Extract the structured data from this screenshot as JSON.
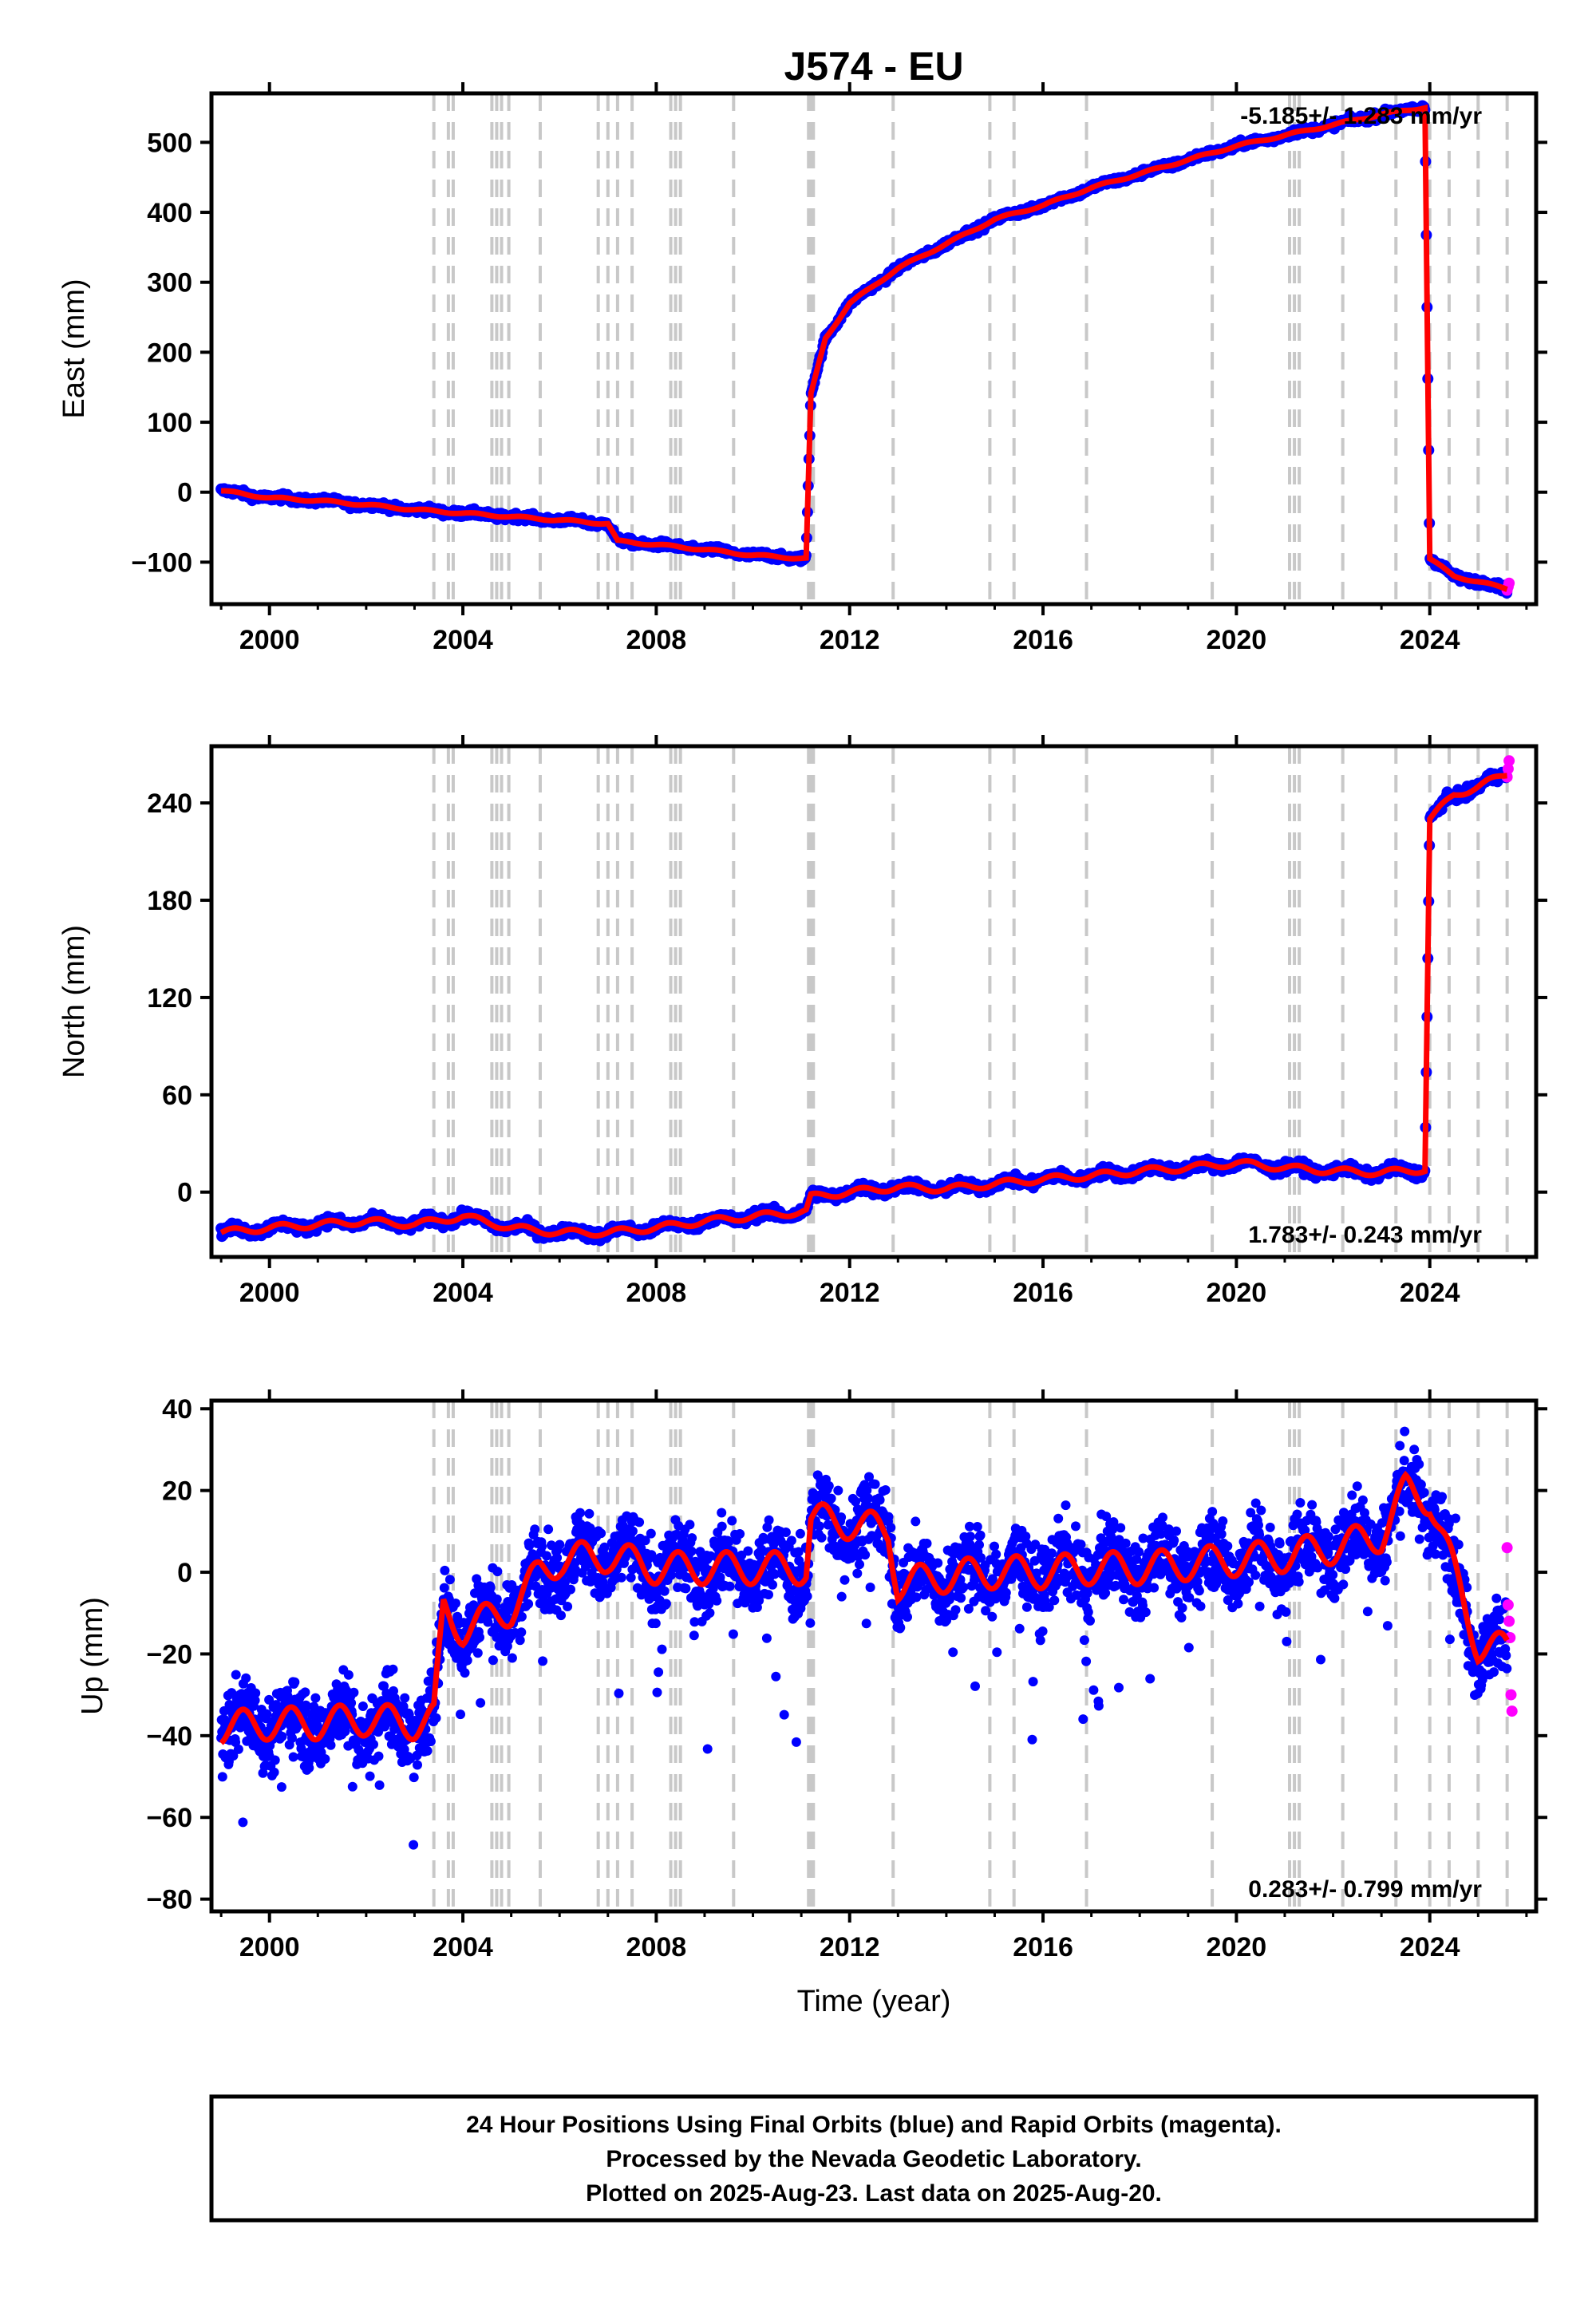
{
  "chart_data": [
    {
      "type": "scatter",
      "panel": "east",
      "title": "J574 - EU",
      "ylabel": "East (mm)",
      "xlabel": "",
      "xlim": [
        1998.8,
        2026.2
      ],
      "ylim": [
        -160,
        570
      ],
      "xticks": [
        "2000",
        "2004",
        "2008",
        "2012",
        "2016",
        "2020",
        "2024"
      ],
      "yticks": [
        "−100",
        "0",
        "100",
        "200",
        "300",
        "400",
        "500"
      ],
      "rate_label": "-5.185+/- 1.283 mm/yr",
      "rate_position": "top-right",
      "grid": false,
      "series": [
        {
          "color": "#0000ff",
          "x": [
            1999.0,
            2000.0,
            2001.0,
            2002.0,
            2003.0,
            2004.0,
            2005.0,
            2006.0,
            2007.0,
            2007.2,
            2008.0,
            2009.0,
            2010.0,
            2011.1,
            2011.2,
            2011.5,
            2012.0,
            2013.0,
            2014.0,
            2015.0,
            2016.0,
            2017.0,
            2018.0,
            2019.0,
            2020.0,
            2021.0,
            2022.0,
            2023.0,
            2023.9,
            2024.0,
            2024.5,
            2025.0,
            2025.6
          ],
          "y": [
            2,
            -8,
            -12,
            -18,
            -25,
            -30,
            -35,
            -40,
            -45,
            -70,
            -75,
            -82,
            -90,
            -95,
            140,
            220,
            270,
            320,
            355,
            390,
            410,
            435,
            455,
            475,
            495,
            510,
            525,
            540,
            550,
            -95,
            -120,
            -128,
            -138
          ]
        }
      ],
      "model_color": "#ff0000",
      "rapid_color": "#ff00ff"
    },
    {
      "type": "scatter",
      "panel": "north",
      "title": "",
      "ylabel": "North (mm)",
      "xlabel": "",
      "xlim": [
        1998.8,
        2026.2
      ],
      "ylim": [
        -40,
        275
      ],
      "xticks": [
        "2000",
        "2004",
        "2008",
        "2012",
        "2016",
        "2020",
        "2024"
      ],
      "yticks": [
        "0",
        "60",
        "120",
        "180",
        "240"
      ],
      "rate_label": "1.783+/- 0.243 mm/yr",
      "rate_position": "bottom-right",
      "grid": false,
      "series": [
        {
          "color": "#0000ff",
          "x": [
            1999.0,
            2000.0,
            2001.0,
            2002.0,
            2003.0,
            2004.0,
            2005.0,
            2006.0,
            2007.0,
            2008.0,
            2009.0,
            2010.0,
            2011.1,
            2011.2,
            2012.0,
            2013.0,
            2014.0,
            2015.0,
            2016.0,
            2017.0,
            2018.0,
            2019.0,
            2020.0,
            2021.0,
            2022.0,
            2023.0,
            2023.9,
            2024.0,
            2024.5,
            2025.0,
            2025.6
          ],
          "y": [
            -25,
            -22,
            -20,
            -18,
            -20,
            -15,
            -22,
            -25,
            -25,
            -22,
            -18,
            -15,
            -12,
            -3,
            0,
            3,
            2,
            5,
            8,
            10,
            13,
            15,
            18,
            15,
            13,
            12,
            14,
            230,
            245,
            250,
            258
          ]
        }
      ],
      "model_color": "#ff0000",
      "rapid_color": "#ff00ff"
    },
    {
      "type": "scatter",
      "panel": "up",
      "title": "",
      "ylabel": "Up (mm)",
      "xlabel": "Time (year)",
      "xlim": [
        1998.8,
        2026.2
      ],
      "ylim": [
        -83,
        42
      ],
      "xticks": [
        "2000",
        "2004",
        "2008",
        "2012",
        "2016",
        "2020",
        "2024"
      ],
      "yticks": [
        "−80",
        "−60",
        "−40",
        "−20",
        "0",
        "20",
        "40"
      ],
      "rate_label": "0.283+/- 0.799 mm/yr",
      "rate_position": "bottom-right",
      "grid": false,
      "series": [
        {
          "color": "#0000ff",
          "x": [
            1999.0,
            2000.0,
            2001.0,
            2002.0,
            2003.0,
            2003.4,
            2003.6,
            2004.0,
            2005.0,
            2005.6,
            2006.0,
            2007.0,
            2008.0,
            2009.0,
            2010.0,
            2011.1,
            2011.2,
            2012.0,
            2012.8,
            2013.0,
            2014.0,
            2015.0,
            2016.0,
            2017.0,
            2018.0,
            2019.0,
            2020.0,
            2021.0,
            2022.0,
            2023.0,
            2023.5,
            2024.0,
            2024.5,
            2025.0,
            2025.6
          ],
          "y": [
            -38,
            -37,
            -37,
            -36,
            -37,
            -36,
            -9,
            -14,
            -9,
            0,
            3,
            4,
            1,
            1,
            1,
            1,
            13,
            12,
            10,
            -3,
            -1,
            0,
            0,
            1,
            1,
            2,
            3,
            4,
            6,
            9,
            20,
            18,
            0,
            -18,
            -19
          ]
        }
      ],
      "rapid_values": [
        6,
        -8,
        -12,
        -16,
        -30,
        -34
      ],
      "model_color": "#ff0000",
      "rapid_color": "#ff00ff"
    }
  ],
  "offset_epochs": [
    2003.4,
    2003.7,
    2003.8,
    2004.6,
    2004.7,
    2004.8,
    2004.95,
    2005.6,
    2006.8,
    2007.0,
    2007.2,
    2007.5,
    2008.3,
    2008.4,
    2008.5,
    2009.6,
    2011.15,
    2011.2,
    2011.25,
    2012.9,
    2014.9,
    2015.4,
    2016.9,
    2019.5,
    2021.1,
    2021.2,
    2021.3,
    2022.2,
    2023.3,
    2024.0,
    2024.4,
    2025.0,
    2025.6
  ],
  "offset_color": "#c8c8c8",
  "footer": {
    "line1": "24 Hour Positions Using Final Orbits (blue) and Rapid Orbits (magenta).",
    "line2": "Processed by the Nevada Geodetic Laboratory.",
    "line3": "Plotted on 2025-Aug-23. Last data on 2025-Aug-20."
  }
}
